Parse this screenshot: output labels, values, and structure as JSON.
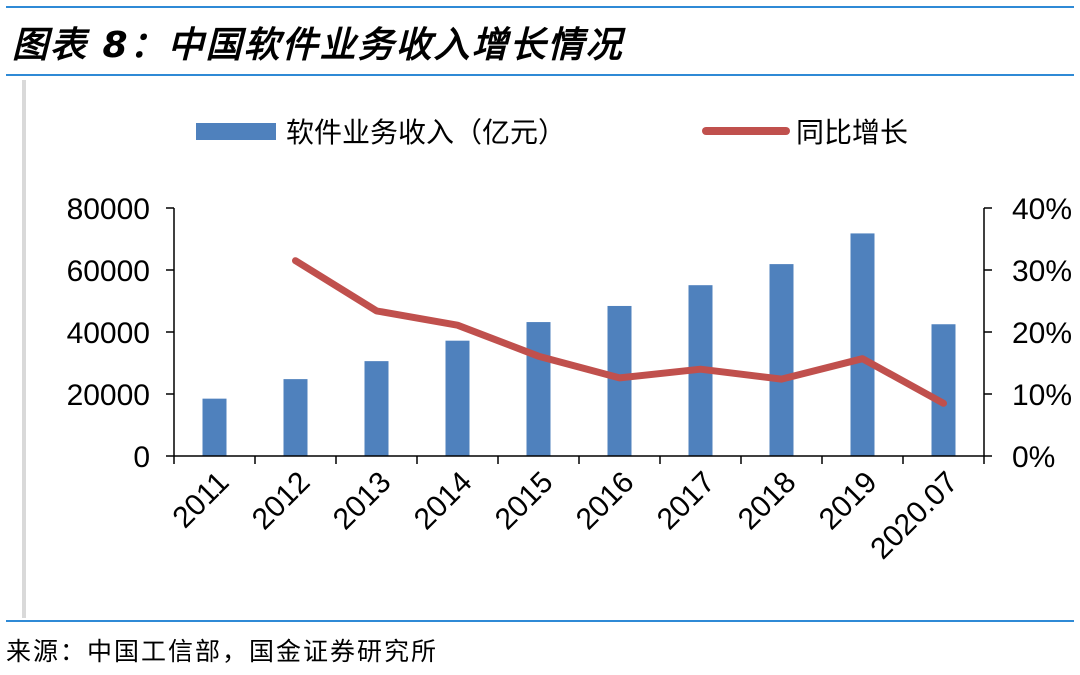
{
  "figure_title": "图表 8：中国软件业务收入增长情况",
  "source": "来源：中国工信部，国金证券研究所",
  "colors": {
    "bar": "#4f81bd",
    "line": "#c0504d",
    "rule": "#2f8ad6",
    "axis": "#000000"
  },
  "chart_data": {
    "type": "bar+line",
    "categories": [
      "2011",
      "2012",
      "2013",
      "2014",
      "2015",
      "2016",
      "2017",
      "2018",
      "2019",
      "2020.07"
    ],
    "series": [
      {
        "name": "软件业务收入（亿元）",
        "type": "bar",
        "axis": "left",
        "values": [
          18500,
          24800,
          30600,
          37200,
          43200,
          48400,
          55100,
          61900,
          71800,
          42500
        ]
      },
      {
        "name": "同比增长",
        "type": "line",
        "axis": "right",
        "values": [
          null,
          31.5,
          23.4,
          21.1,
          16.1,
          12.6,
          14.0,
          12.4,
          15.7,
          8.5
        ]
      }
    ],
    "ylim_left": [
      0,
      80000
    ],
    "yticks_left": [
      "0",
      "20000",
      "40000",
      "60000",
      "80000"
    ],
    "ylim_right": [
      0,
      40
    ],
    "yticks_right": [
      "0%",
      "10%",
      "20%",
      "30%",
      "40%"
    ],
    "legend_position": "top",
    "grid": false
  }
}
